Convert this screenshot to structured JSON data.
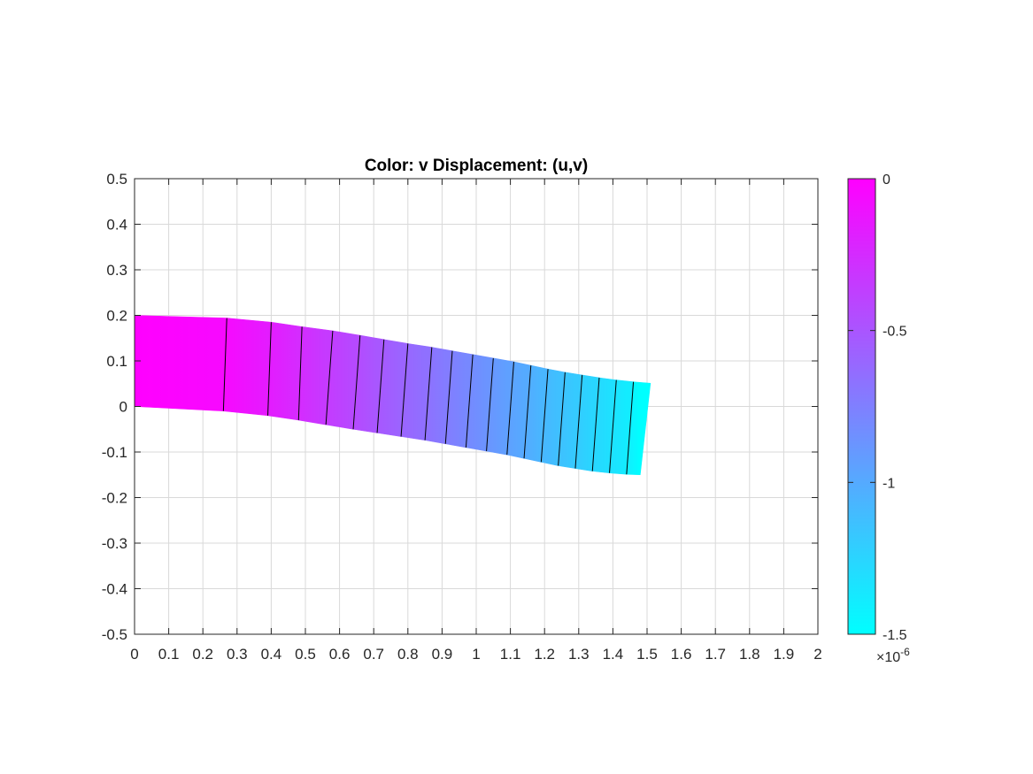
{
  "chart_data": {
    "type": "heatmap",
    "title": "Color: v  Displacement: (u,v)",
    "xlabel": "",
    "ylabel": "",
    "xlim": [
      0,
      2
    ],
    "ylim": [
      -0.5,
      0.5
    ],
    "xticks": [
      "0",
      "0.1",
      "0.2",
      "0.3",
      "0.4",
      "0.5",
      "0.6",
      "0.7",
      "0.8",
      "0.9",
      "1",
      "1.1",
      "1.2",
      "1.3",
      "1.4",
      "1.5",
      "1.6",
      "1.7",
      "1.8",
      "1.9",
      "2"
    ],
    "yticks": [
      "0.5",
      "0.4",
      "0.3",
      "0.2",
      "0.1",
      "0",
      "-0.1",
      "-0.2",
      "-0.3",
      "-0.4",
      "-0.5"
    ],
    "grid": true,
    "colormap": "cool",
    "colormap_colors": [
      "#ff00ff",
      "#00ffff"
    ],
    "deformed_shape": {
      "x_bottom": [
        0,
        0.26,
        0.39,
        0.48,
        0.56,
        0.64,
        0.71,
        0.78,
        0.85,
        0.91,
        0.97,
        1.03,
        1.09,
        1.14,
        1.19,
        1.24,
        1.29,
        1.34,
        1.39,
        1.44,
        1.48
      ],
      "y_bottom": [
        0,
        -0.01,
        -0.02,
        -0.03,
        -0.04,
        -0.05,
        -0.058,
        -0.066,
        -0.074,
        -0.082,
        -0.09,
        -0.098,
        -0.106,
        -0.114,
        -0.122,
        -0.13,
        -0.136,
        -0.142,
        -0.146,
        -0.149,
        -0.15
      ],
      "x_top": [
        0,
        0.27,
        0.4,
        0.49,
        0.58,
        0.66,
        0.73,
        0.8,
        0.87,
        0.93,
        0.99,
        1.05,
        1.11,
        1.16,
        1.21,
        1.26,
        1.31,
        1.36,
        1.41,
        1.46,
        1.51
      ],
      "y_top": [
        0.2,
        0.194,
        0.185,
        0.175,
        0.166,
        0.156,
        0.147,
        0.138,
        0.13,
        0.122,
        0.114,
        0.106,
        0.098,
        0.09,
        0.082,
        0.075,
        0.069,
        0.063,
        0.058,
        0.054,
        0.051
      ],
      "v_values": [
        0,
        -0.05,
        -0.16,
        -0.25,
        -0.34,
        -0.43,
        -0.51,
        -0.59,
        -0.66,
        -0.73,
        -0.8,
        -0.87,
        -0.94,
        -1.0,
        -1.07,
        -1.13,
        -1.19,
        -1.26,
        -1.32,
        -1.39,
        -1.5
      ],
      "v_scale": "1e-6"
    },
    "colorbar": {
      "limits": [
        -1.5,
        0
      ],
      "ticks": [
        0,
        -0.5,
        -1,
        -1.5
      ],
      "tick_labels": [
        "0",
        "-0.5",
        "-1",
        "-1.5"
      ],
      "exponent_base": "×10",
      "exponent": "-6"
    }
  }
}
